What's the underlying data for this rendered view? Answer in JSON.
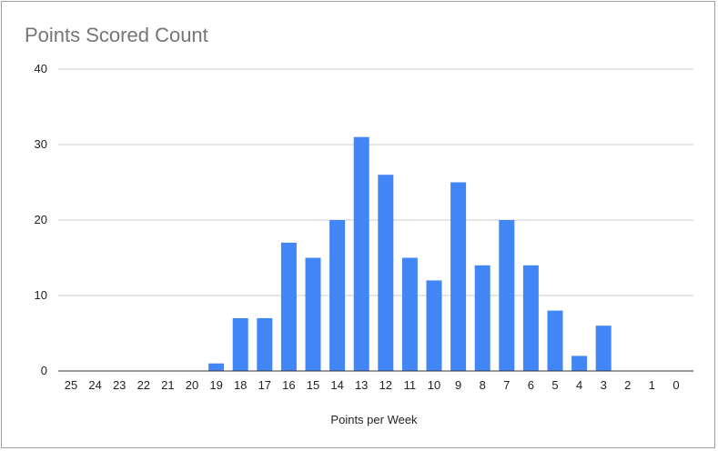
{
  "chart_data": {
    "type": "bar",
    "title": "Points Scored Count",
    "xlabel": "Points per Week",
    "ylabel": "",
    "ylim": [
      0,
      40
    ],
    "yticks": [
      0,
      10,
      20,
      30,
      40
    ],
    "grid": true,
    "legend": "none",
    "bar_color": "#4285f4",
    "categories": [
      "25",
      "24",
      "23",
      "22",
      "21",
      "20",
      "19",
      "18",
      "17",
      "16",
      "15",
      "14",
      "13",
      "12",
      "11",
      "10",
      "9",
      "8",
      "7",
      "6",
      "5",
      "4",
      "3",
      "2",
      "1",
      "0"
    ],
    "values": [
      0,
      0,
      0,
      0,
      0,
      0,
      1,
      7,
      7,
      17,
      15,
      20,
      31,
      26,
      15,
      12,
      25,
      14,
      20,
      14,
      8,
      2,
      6,
      0,
      0,
      0
    ]
  }
}
